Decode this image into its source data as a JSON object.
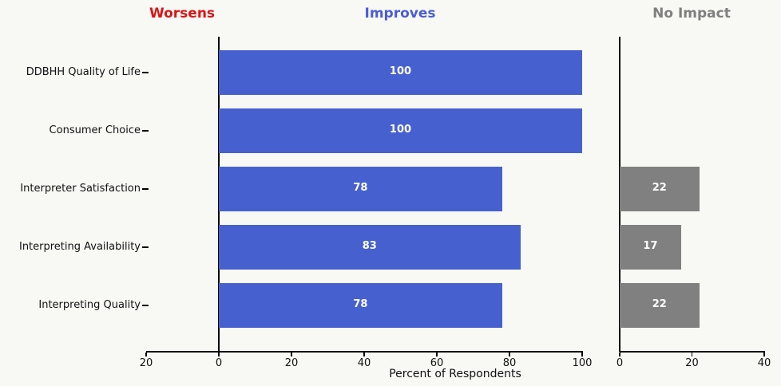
{
  "headers": [
    {
      "label": "Worsens",
      "color": "#dc1414"
    },
    {
      "label": "Improves",
      "color": "#4a5cd6"
    },
    {
      "label": "No Impact",
      "color": "#7f7f7f"
    }
  ],
  "chart_data": {
    "type": "bar",
    "orientation": "horizontal",
    "title": "",
    "xlabel": "Percent of Respondents",
    "ylabel": "",
    "categories": [
      "DDBHH Quality of Life",
      "Consumer Choice",
      "Interpreter Satisfaction",
      "Interpreting Availability",
      "Interpreting Quality"
    ],
    "series": [
      {
        "name": "Worsens",
        "panel": "main",
        "direction": -1,
        "color": "#dc1414",
        "values": [
          0,
          0,
          0,
          0,
          0
        ]
      },
      {
        "name": "Improves",
        "panel": "main",
        "direction": 1,
        "color": "#4660cf",
        "values": [
          100,
          100,
          78,
          83,
          78
        ]
      },
      {
        "name": "No Impact",
        "panel": "right",
        "direction": 1,
        "color": "#808080",
        "values": [
          0,
          0,
          22,
          17,
          22
        ]
      }
    ],
    "value_labels": {
      "Improves": [
        "100",
        "100",
        "78",
        "83",
        "78"
      ],
      "No Impact": [
        "",
        "",
        "22",
        "17",
        "22"
      ]
    },
    "main_axis": {
      "range": [
        -20,
        100
      ],
      "tick_values": [
        -20,
        0,
        20,
        40,
        60,
        80,
        100
      ],
      "tick_labels": [
        "20",
        "0",
        "20",
        "40",
        "60",
        "80",
        "100"
      ]
    },
    "right_axis": {
      "range": [
        0,
        40
      ],
      "tick_values": [
        0,
        20,
        40
      ],
      "tick_labels": [
        "0",
        "20",
        "40"
      ]
    },
    "legend": "none",
    "grid": false,
    "background": "#f8f8f5",
    "bar_label_color": "#ffffff",
    "axis_color": "#000000",
    "text_color": "#111111"
  }
}
